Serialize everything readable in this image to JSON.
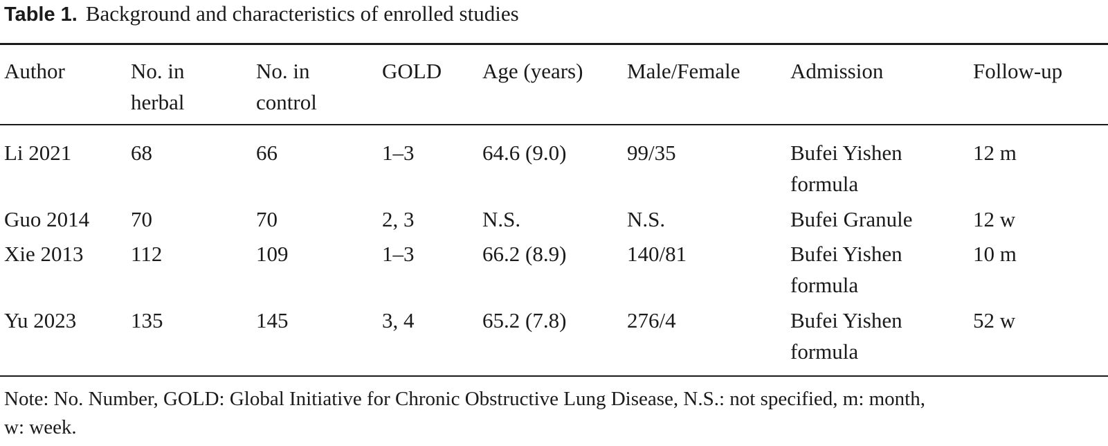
{
  "caption": {
    "label": "Table 1.",
    "title": "Background and characteristics of enrolled studies"
  },
  "table": {
    "headers": [
      [
        "Author"
      ],
      [
        "No. in",
        "herbal"
      ],
      [
        "No. in",
        "control"
      ],
      [
        "GOLD"
      ],
      [
        "Age (years)"
      ],
      [
        "Male/Female"
      ],
      [
        "Admission"
      ],
      [
        "Follow-up"
      ]
    ],
    "rows": [
      {
        "author": "Li 2021",
        "herbal": "68",
        "control": "66",
        "gold": "1–3",
        "age": "64.6 (9.0)",
        "sex": "99/35",
        "admission": [
          "Bufei Yishen",
          "formula"
        ],
        "followup": "12 m"
      },
      {
        "author": "Guo 2014",
        "herbal": "70",
        "control": "70",
        "gold": "2, 3",
        "age": "N.S.",
        "sex": "N.S.",
        "admission": [
          "Bufei Granule"
        ],
        "followup": "12 w"
      },
      {
        "author": "Xie 2013",
        "herbal": "112",
        "control": "109",
        "gold": "1–3",
        "age": "66.2 (8.9)",
        "sex": "140/81",
        "admission": [
          "Bufei Yishen",
          "formula"
        ],
        "followup": "10 m"
      },
      {
        "author": "Yu 2023",
        "herbal": "135",
        "control": "145",
        "gold": "3, 4",
        "age": "65.2 (7.8)",
        "sex": "276/4",
        "admission": [
          "Bufei Yishen",
          "formula"
        ],
        "followup": "52 w"
      }
    ]
  },
  "note": {
    "lines": [
      "Note: No. Number, GOLD: Global Initiative for Chronic Obstructive Lung Disease, N.S.: not specified, m: month,",
      "w: week."
    ]
  }
}
